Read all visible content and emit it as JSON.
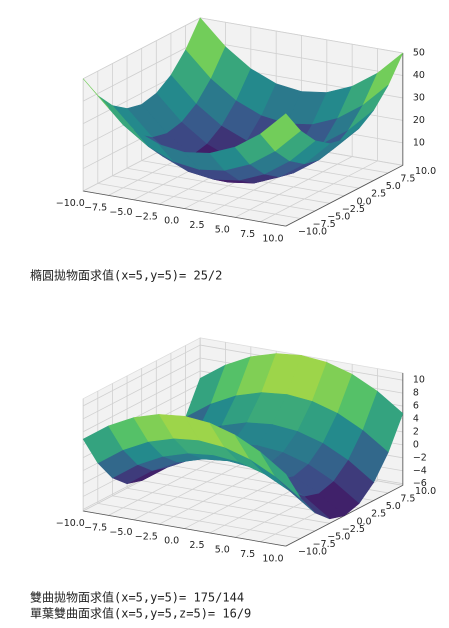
{
  "chart_data": [
    {
      "type": "surface",
      "colormap": "viridis",
      "x": [
        -10,
        -7.5,
        -5,
        -2.5,
        0,
        2.5,
        5,
        7.5,
        10
      ],
      "y": [
        -10,
        -7.5,
        -5,
        -2.5,
        0,
        2.5,
        5,
        7.5,
        10
      ],
      "z": [
        [
          50,
          39.0625,
          31.25,
          26.5625,
          25,
          26.5625,
          31.25,
          39.0625,
          50
        ],
        [
          39.0625,
          28.125,
          20.3125,
          15.625,
          14.0625,
          15.625,
          20.3125,
          28.125,
          39.0625
        ],
        [
          31.25,
          20.3125,
          12.5,
          7.8125,
          6.25,
          7.8125,
          12.5,
          20.3125,
          31.25
        ],
        [
          26.5625,
          15.625,
          7.8125,
          3.125,
          1.5625,
          3.125,
          7.8125,
          15.625,
          26.5625
        ],
        [
          25,
          14.0625,
          6.25,
          1.5625,
          0,
          1.5625,
          6.25,
          14.0625,
          25
        ],
        [
          26.5625,
          15.625,
          7.8125,
          3.125,
          1.5625,
          3.125,
          7.8125,
          15.625,
          26.5625
        ],
        [
          31.25,
          20.3125,
          12.5,
          7.8125,
          6.25,
          7.8125,
          12.5,
          20.3125,
          31.25
        ],
        [
          39.0625,
          28.125,
          20.3125,
          15.625,
          14.0625,
          15.625,
          20.3125,
          28.125,
          39.0625
        ],
        [
          50,
          39.0625,
          31.25,
          26.5625,
          25,
          26.5625,
          31.25,
          39.0625,
          50
        ]
      ],
      "xlim": [
        -10,
        10
      ],
      "ylim": [
        -10,
        10
      ],
      "zlim": [
        0,
        50
      ],
      "xticks": [
        {
          "value": -10,
          "label": "−10.0"
        },
        {
          "value": -7.5,
          "label": "−7.5"
        },
        {
          "value": -5,
          "label": "−5.0"
        },
        {
          "value": -2.5,
          "label": "−2.5"
        },
        {
          "value": 0,
          "label": "0.0"
        },
        2.5,
        {
          "value": 5,
          "label": "5.0"
        },
        7.5,
        {
          "value": 10,
          "label": "10.0"
        }
      ],
      "yticks": [
        {
          "value": -10,
          "label": "−10.0"
        },
        {
          "value": -7.5,
          "label": "−7.5"
        },
        {
          "value": -5,
          "label": "−5.0"
        },
        {
          "value": -2.5,
          "label": "−2.5"
        },
        {
          "value": 0,
          "label": "0.0"
        },
        2.5,
        {
          "value": 5,
          "label": "5.0"
        },
        7.5,
        {
          "value": 10,
          "label": "10.0"
        }
      ],
      "zticks": [
        10,
        20,
        30,
        40,
        50
      ]
    },
    {
      "type": "surface",
      "colormap": "viridis",
      "x": [
        -10,
        -7.5,
        -5,
        -2.5,
        0,
        2.5,
        5,
        7.5,
        10
      ],
      "y": [
        -10,
        -7.5,
        -5,
        -2.5,
        0,
        2.5,
        5,
        7.5,
        10
      ],
      "z": [
        [
          4.86,
          7.59,
          9.55,
          10.72,
          11.11,
          10.72,
          9.55,
          7.59,
          4.86
        ],
        [
          0,
          2.73,
          4.69,
          5.86,
          6.25,
          5.86,
          4.69,
          2.73,
          0
        ],
        [
          -3.47,
          -0.74,
          1.22,
          2.39,
          2.78,
          2.39,
          1.22,
          -0.74,
          -3.47
        ],
        [
          -5.56,
          -2.83,
          -0.87,
          0.3,
          0.69,
          0.3,
          -0.87,
          -2.83,
          -5.56
        ],
        [
          -6.25,
          -3.52,
          -1.56,
          -0.39,
          0,
          -0.39,
          -1.56,
          -3.52,
          -6.25
        ],
        [
          -5.56,
          -2.83,
          -0.87,
          0.3,
          0.69,
          0.3,
          -0.87,
          -2.83,
          -5.56
        ],
        [
          -3.47,
          -0.74,
          1.22,
          2.39,
          2.78,
          2.39,
          1.22,
          -0.74,
          -3.47
        ],
        [
          0,
          2.73,
          4.69,
          5.86,
          6.25,
          5.86,
          4.69,
          2.73,
          0
        ],
        [
          4.86,
          7.59,
          9.55,
          10.72,
          11.11,
          10.72,
          9.55,
          7.59,
          4.86
        ]
      ],
      "xlim": [
        -10,
        10
      ],
      "ylim": [
        -10,
        10
      ],
      "zlim": [
        -6.25,
        11.11
      ],
      "xticks": [
        {
          "value": -10,
          "label": "−10.0"
        },
        {
          "value": -7.5,
          "label": "−7.5"
        },
        {
          "value": -5,
          "label": "−5.0"
        },
        {
          "value": -2.5,
          "label": "−2.5"
        },
        {
          "value": 0,
          "label": "0.0"
        },
        2.5,
        {
          "value": 5,
          "label": "5.0"
        },
        7.5,
        {
          "value": 10,
          "label": "10.0"
        }
      ],
      "yticks": [
        {
          "value": -10,
          "label": "−10.0"
        },
        {
          "value": -7.5,
          "label": "−7.5"
        },
        {
          "value": -5,
          "label": "−5.0"
        },
        {
          "value": -2.5,
          "label": "−2.5"
        },
        {
          "value": 0,
          "label": "0.0"
        },
        2.5,
        {
          "value": 5,
          "label": "5.0"
        },
        7.5,
        {
          "value": 10,
          "label": "10.0"
        }
      ],
      "zticks": [
        {
          "value": -6,
          "label": "−6"
        },
        {
          "value": -4,
          "label": "−4"
        },
        {
          "value": -2,
          "label": "−2"
        },
        0,
        2,
        4,
        6,
        8,
        10
      ]
    }
  ],
  "outputs": [
    "橢圓拋物面求值(x=5,y=5)= 25/2",
    "雙曲拋物面求值(x=5,y=5)= 175/144",
    "單葉雙曲面求值(x=5,y=5,z=5)= 16/9"
  ]
}
